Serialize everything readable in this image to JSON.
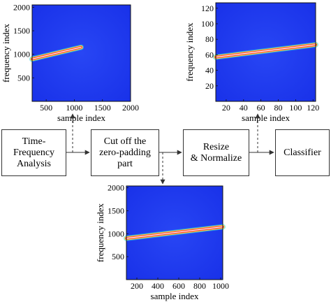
{
  "colors": {
    "plot_background": "#1f3df2",
    "border": "#333333",
    "chirp_core": "#ffffff",
    "chirp_mid": "#ff3b2e",
    "chirp_edge": "#ffe84a",
    "chirp_halo": "#2ad1d8"
  },
  "flow": {
    "boxes": [
      {
        "label_lines": [
          "Time-",
          "Frequency",
          "Analysis"
        ]
      },
      {
        "label_lines": [
          "Cut off the",
          "zero-padding",
          "part"
        ]
      },
      {
        "label_lines": [
          "Resize",
          "& Normalize"
        ]
      },
      {
        "label_lines": [
          "Classifier"
        ]
      }
    ]
  },
  "chart_data": [
    {
      "type": "heatmap",
      "xlabel": "sample index",
      "ylabel": "frequency index",
      "xlim": [
        250,
        2000
      ],
      "ylim": [
        0,
        2050
      ],
      "xticks": [
        500,
        1000,
        1500,
        2000
      ],
      "yticks": [
        500,
        1000,
        1500,
        2000
      ],
      "chirp": {
        "x_start": 250,
        "y_start": 900,
        "x_end": 1120,
        "y_end": 1150
      }
    },
    {
      "type": "heatmap",
      "xlabel": "sample index",
      "ylabel": "frequency index",
      "xlim": [
        8,
        123
      ],
      "ylim": [
        0,
        127
      ],
      "xticks": [
        20,
        40,
        60,
        80,
        100,
        120
      ],
      "yticks": [
        20,
        40,
        60,
        80,
        100,
        120
      ],
      "chirp": {
        "x_start": 8,
        "y_start": 57,
        "x_end": 123,
        "y_end": 73
      }
    },
    {
      "type": "heatmap",
      "xlabel": "sample index",
      "ylabel": "frequency index",
      "xlim": [
        100,
        1020
      ],
      "ylim": [
        0,
        2040
      ],
      "xticks": [
        200,
        400,
        600,
        800,
        1000
      ],
      "yticks": [
        500,
        1000,
        1500,
        2000
      ],
      "chirp": {
        "x_start": 100,
        "y_start": 900,
        "x_end": 1020,
        "y_end": 1150
      }
    }
  ]
}
